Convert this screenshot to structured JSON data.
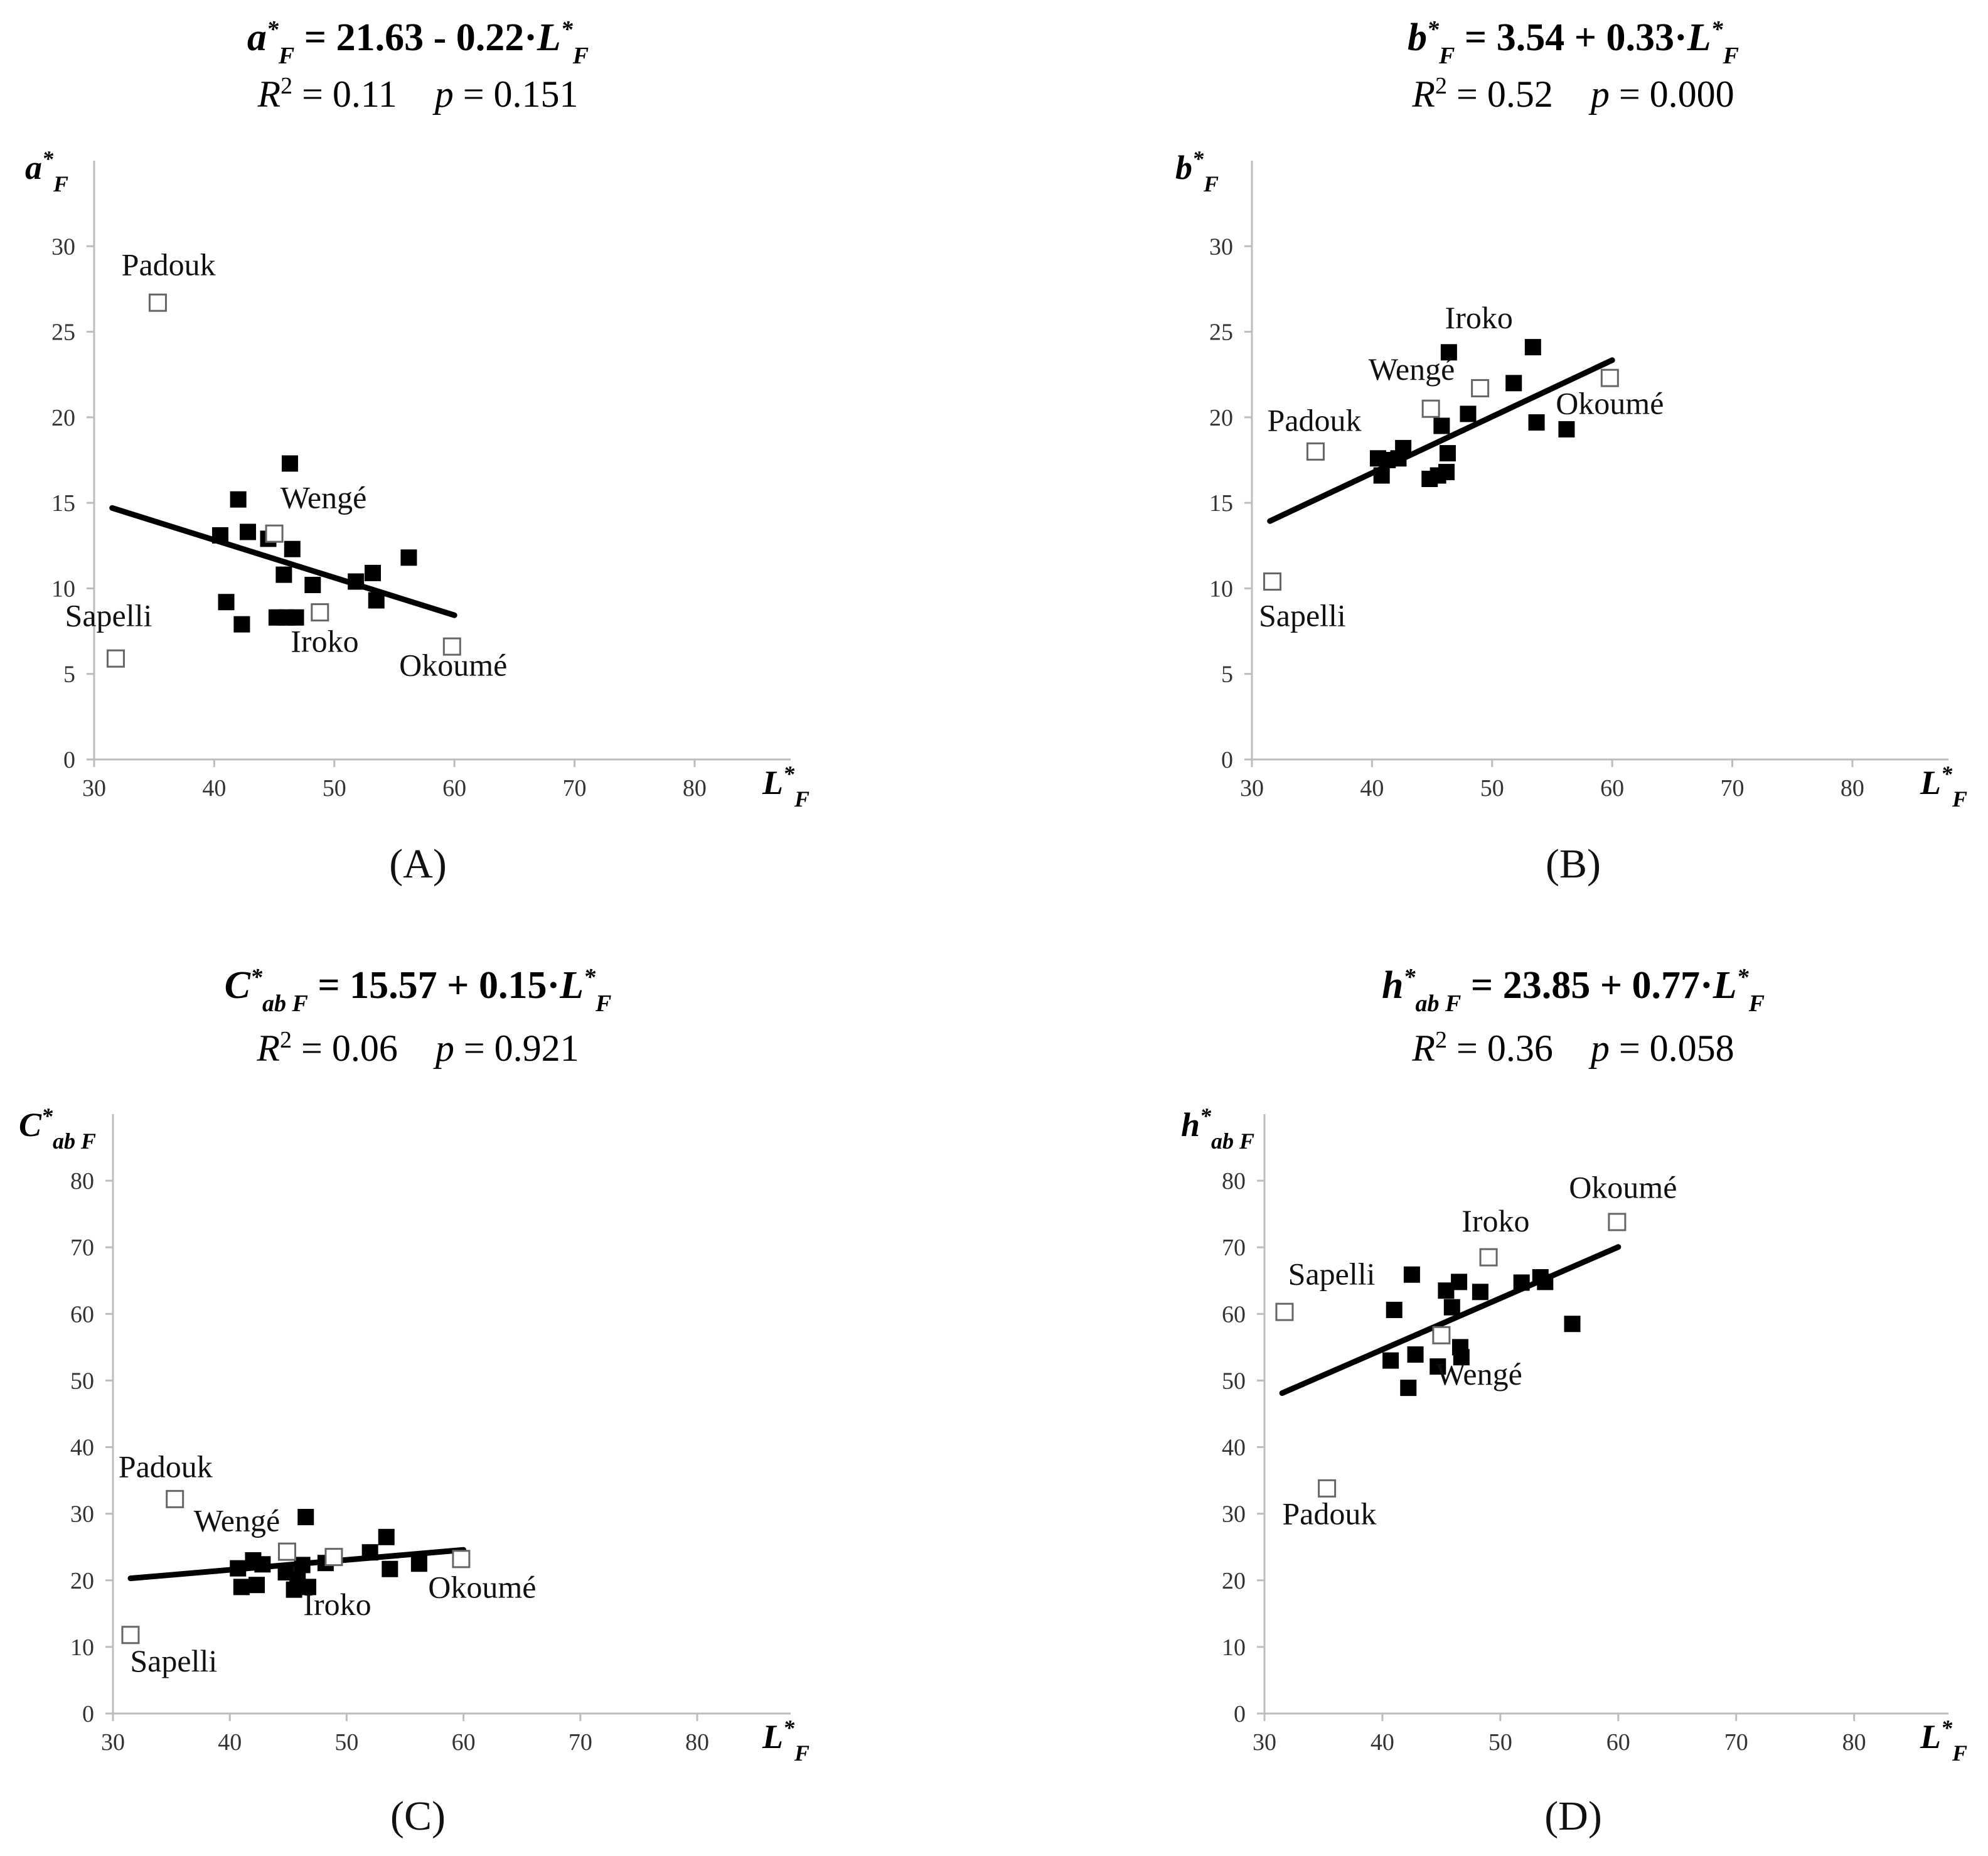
{
  "chart_data": [
    {
      "type": "scatter",
      "panel": "(A)",
      "title": {
        "y_symbol": "a",
        "y_sub": "F",
        "text": "= 21.63 - 0.22·",
        "x_symbol": "L",
        "x_sub": "F"
      },
      "stats": {
        "r2_label": "R",
        "r2_value": "= 0.11",
        "p_label": "p",
        "p_value": "= 0.151"
      },
      "ylabel": {
        "symbol": "a",
        "sub": "F"
      },
      "xlabel": {
        "symbol": "L",
        "sub": "F"
      },
      "xlim": [
        30,
        88
      ],
      "ylim": [
        0,
        35
      ],
      "xticks": [
        30,
        40,
        50,
        60,
        70,
        80
      ],
      "yticks": [
        0,
        5,
        10,
        15,
        20,
        25,
        30
      ],
      "regression": {
        "intercept": 21.63,
        "slope": -0.22,
        "x_range": [
          31.5,
          60
        ]
      },
      "filled_points": [
        [
          40.5,
          13.1
        ],
        [
          41,
          9.2
        ],
        [
          42,
          15.2
        ],
        [
          42.3,
          7.9
        ],
        [
          42.8,
          13.3
        ],
        [
          44.5,
          12.9
        ],
        [
          45.2,
          8.3
        ],
        [
          45.8,
          10.8
        ],
        [
          46,
          8.3
        ],
        [
          46.3,
          17.3
        ],
        [
          46.5,
          12.3
        ],
        [
          46.8,
          8.3
        ],
        [
          48.2,
          10.2
        ],
        [
          51.8,
          10.4
        ],
        [
          53.2,
          10.9
        ],
        [
          53.5,
          9.3
        ],
        [
          56.2,
          11.8
        ]
      ],
      "open_points": [
        [
          31.8,
          5.9
        ],
        [
          35.3,
          26.7
        ],
        [
          45,
          13.2
        ],
        [
          48.8,
          8.6
        ],
        [
          59.8,
          6.6
        ]
      ],
      "annotations": [
        {
          "text": "Padouk",
          "x": 36.2,
          "y": 28.3
        },
        {
          "text": "Wengé",
          "x": 49.1,
          "y": 14.7
        },
        {
          "text": "Sapelli",
          "x": 31.2,
          "y": 7.8
        },
        {
          "text": "Iroko",
          "x": 49.2,
          "y": 6.3
        },
        {
          "text": "Okoumé",
          "x": 59.9,
          "y": 4.9
        }
      ]
    },
    {
      "type": "scatter",
      "panel": "(B)",
      "title": {
        "y_symbol": "b",
        "y_sub": "F",
        "text": "= 3.54 + 0.33·",
        "x_symbol": "L",
        "x_sub": "F"
      },
      "stats": {
        "r2_label": "R",
        "r2_value": "= 0.52",
        "p_label": "p",
        "p_value": "= 0.000"
      },
      "ylabel": {
        "symbol": "b",
        "sub": "F"
      },
      "xlabel": {
        "symbol": "L",
        "sub": "F"
      },
      "xlim": [
        30,
        88
      ],
      "ylim": [
        0,
        35
      ],
      "xticks": [
        30,
        40,
        50,
        60,
        70,
        80
      ],
      "yticks": [
        0,
        5,
        10,
        15,
        20,
        25,
        30
      ],
      "regression": {
        "intercept": 3.54,
        "slope": 0.33,
        "x_range": [
          31.5,
          60
        ]
      },
      "filled_points": [
        [
          40.5,
          17.6
        ],
        [
          40.8,
          16.6
        ],
        [
          41.3,
          17.5
        ],
        [
          42.2,
          17.6
        ],
        [
          42.6,
          18.2
        ],
        [
          44.8,
          16.4
        ],
        [
          45.5,
          16.6
        ],
        [
          45.8,
          19.5
        ],
        [
          46.2,
          16.8
        ],
        [
          46.3,
          17.9
        ],
        [
          46.4,
          23.8
        ],
        [
          48,
          20.2
        ],
        [
          51.8,
          22
        ],
        [
          53.4,
          24.1
        ],
        [
          53.7,
          19.7
        ],
        [
          56.2,
          19.3
        ]
      ],
      "open_points": [
        [
          31.7,
          10.4
        ],
        [
          35.3,
          18
        ],
        [
          44.9,
          20.5
        ],
        [
          49,
          21.7
        ],
        [
          59.8,
          22.3
        ]
      ],
      "annotations": [
        {
          "text": "Iroko",
          "x": 48.9,
          "y": 25.2
        },
        {
          "text": "Wengé",
          "x": 43.3,
          "y": 22.2
        },
        {
          "text": "Padouk",
          "x": 35.2,
          "y": 19.2
        },
        {
          "text": "Okoumé",
          "x": 59.8,
          "y": 20.2
        },
        {
          "text": "Sapelli",
          "x": 34.2,
          "y": 7.8
        }
      ]
    },
    {
      "type": "scatter",
      "panel": "(C)",
      "title": {
        "y_symbol": "C",
        "y_sub": "ab F",
        "text": "= 15.57 + 0.15·",
        "x_symbol": "L",
        "x_sub": "F"
      },
      "stats": {
        "r2_label": "R",
        "r2_value": "= 0.06",
        "p_label": "p",
        "p_value": "= 0.921"
      },
      "ylabel": {
        "symbol": "C",
        "sub": "ab F"
      },
      "xlabel": {
        "symbol": "L",
        "sub": "F"
      },
      "xlim": [
        30,
        88
      ],
      "ylim": [
        0,
        90
      ],
      "xticks": [
        30,
        40,
        50,
        60,
        70,
        80
      ],
      "yticks": [
        0,
        10,
        20,
        30,
        40,
        50,
        60,
        70,
        80
      ],
      "regression": {
        "intercept": 15.57,
        "slope": 0.15,
        "x_range": [
          31.5,
          60
        ]
      },
      "filled_points": [
        [
          40.7,
          21.8
        ],
        [
          41,
          19
        ],
        [
          42,
          23
        ],
        [
          42.3,
          19.3
        ],
        [
          42.8,
          22.4
        ],
        [
          44.8,
          21.2
        ],
        [
          45.5,
          18.6
        ],
        [
          45.8,
          20.2
        ],
        [
          46.2,
          22.3
        ],
        [
          46.5,
          29.5
        ],
        [
          46.7,
          19
        ],
        [
          48.2,
          22.6
        ],
        [
          52,
          24.2
        ],
        [
          53.4,
          26.5
        ],
        [
          53.7,
          21.7
        ],
        [
          56.2,
          22.5
        ]
      ],
      "open_points": [
        [
          31.5,
          11.8
        ],
        [
          35.3,
          32.2
        ],
        [
          44.9,
          24.3
        ],
        [
          48.9,
          23.5
        ],
        [
          59.8,
          23.2
        ]
      ],
      "annotations": [
        {
          "text": "Padouk",
          "x": 34.5,
          "y": 35.5
        },
        {
          "text": "Wengé",
          "x": 40.6,
          "y": 27.4
        },
        {
          "text": "Iroko",
          "x": 49.2,
          "y": 14.8
        },
        {
          "text": "Okoumé",
          "x": 61.6,
          "y": 17.4
        },
        {
          "text": "Sapelli",
          "x": 35.2,
          "y": 6.3
        }
      ]
    },
    {
      "type": "scatter",
      "panel": "(D)",
      "title": {
        "y_symbol": "h",
        "y_sub": "ab F",
        "text": "= 23.85 + 0.77·",
        "x_symbol": "L",
        "x_sub": "F"
      },
      "stats": {
        "r2_label": "R",
        "r2_value": "= 0.36",
        "p_label": "p",
        "p_value": "= 0.058"
      },
      "ylabel": {
        "symbol": "h",
        "sub": "ab F"
      },
      "xlabel": {
        "symbol": "L",
        "sub": "F"
      },
      "xlim": [
        30,
        88
      ],
      "ylim": [
        0,
        90
      ],
      "xticks": [
        30,
        40,
        50,
        60,
        70,
        80
      ],
      "yticks": [
        0,
        10,
        20,
        30,
        40,
        50,
        60,
        70,
        80
      ],
      "regression": {
        "intercept": 23.85,
        "slope": 0.77,
        "x_range": [
          31.5,
          60
        ]
      },
      "filled_points": [
        [
          40.7,
          53
        ],
        [
          41,
          60.6
        ],
        [
          42.2,
          48.9
        ],
        [
          42.5,
          65.9
        ],
        [
          42.8,
          53.9
        ],
        [
          44.7,
          52.1
        ],
        [
          45.4,
          63.5
        ],
        [
          45.9,
          61
        ],
        [
          46.5,
          64.8
        ],
        [
          46.6,
          55
        ],
        [
          46.7,
          53.5
        ],
        [
          48.3,
          63.3
        ],
        [
          51.8,
          64.7
        ],
        [
          53.4,
          65.5
        ],
        [
          53.8,
          64.8
        ],
        [
          56.1,
          58.5
        ]
      ],
      "open_points": [
        [
          31.7,
          60.3
        ],
        [
          35.3,
          33.8
        ],
        [
          45,
          56.8
        ],
        [
          49,
          68.5
        ],
        [
          59.9,
          73.8
        ]
      ],
      "annotations": [
        {
          "text": "Okoumé",
          "x": 60.4,
          "y": 77.4
        },
        {
          "text": "Iroko",
          "x": 49.6,
          "y": 72.4
        },
        {
          "text": "Sapelli",
          "x": 35.7,
          "y": 64.4
        },
        {
          "text": "Wengé",
          "x": 48.2,
          "y": 49.4
        },
        {
          "text": "Padouk",
          "x": 35.5,
          "y": 28.4
        }
      ]
    }
  ]
}
